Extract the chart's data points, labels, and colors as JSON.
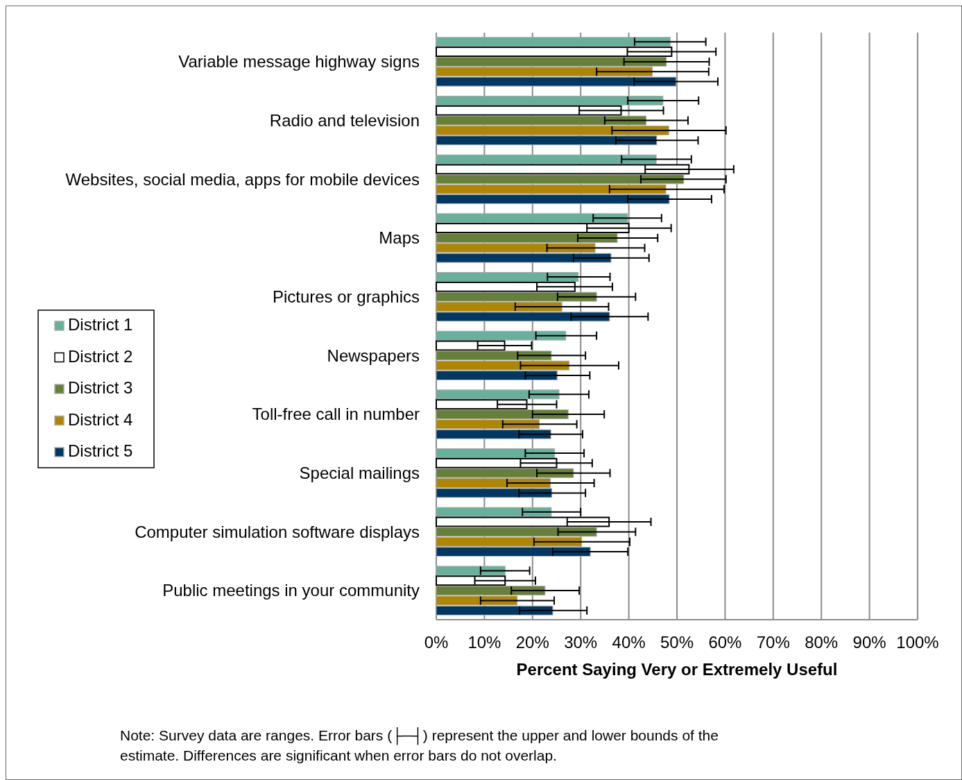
{
  "chart_data": {
    "type": "bar",
    "orientation": "horizontal",
    "categories": [
      "Variable message highway signs",
      "Radio and television",
      "Websites, social media, apps for mobile devices",
      "Maps",
      "Pictures or graphics",
      "Newspapers",
      "Toll-free call in number",
      "Special mailings",
      "Computer simulation software displays",
      "Public meetings in your community"
    ],
    "series": [
      {
        "name": "District 1",
        "color": "#67b09b",
        "values": [
          48.6,
          47.1,
          45.7,
          39.7,
          29.5,
          26.9,
          25.5,
          24.6,
          23.9,
          14.3
        ],
        "errors": [
          [
            41.2,
            56.0
          ],
          [
            39.8,
            54.5
          ],
          [
            38.5,
            53.0
          ],
          [
            32.6,
            46.8
          ],
          [
            23.1,
            36.1
          ],
          [
            20.7,
            33.3
          ],
          [
            19.3,
            31.7
          ],
          [
            18.5,
            30.7
          ],
          [
            17.9,
            30.0
          ],
          [
            9.2,
            19.4
          ]
        ]
      },
      {
        "name": "District 2",
        "color": "#ffffff",
        "values": [
          48.9,
          38.4,
          52.5,
          40.0,
          28.8,
          14.2,
          18.8,
          25.0,
          35.9,
          14.3
        ],
        "errors": [
          [
            39.7,
            58.1
          ],
          [
            29.7,
            47.2
          ],
          [
            43.4,
            61.8
          ],
          [
            31.3,
            48.8
          ],
          [
            20.9,
            36.6
          ],
          [
            8.6,
            19.8
          ],
          [
            12.7,
            25.0
          ],
          [
            17.5,
            32.4
          ],
          [
            27.2,
            44.6
          ],
          [
            8.0,
            20.6
          ]
        ]
      },
      {
        "name": "District 3",
        "color": "#66803a",
        "values": [
          47.8,
          43.6,
          51.4,
          37.6,
          33.3,
          23.9,
          27.4,
          28.5,
          33.3,
          22.6
        ],
        "errors": [
          [
            39.0,
            56.7
          ],
          [
            35.0,
            52.3
          ],
          [
            42.5,
            60.2
          ],
          [
            29.4,
            46.0
          ],
          [
            25.2,
            41.4
          ],
          [
            16.9,
            31.0
          ],
          [
            20.0,
            34.9
          ],
          [
            20.9,
            36.1
          ],
          [
            25.3,
            41.4
          ],
          [
            15.6,
            29.7
          ]
        ]
      },
      {
        "name": "District 4",
        "color": "#b08600",
        "values": [
          44.9,
          48.3,
          47.7,
          33.0,
          26.1,
          27.6,
          21.4,
          23.7,
          30.2,
          16.8
        ],
        "errors": [
          [
            33.3,
            56.6
          ],
          [
            36.5,
            60.2
          ],
          [
            36.0,
            59.8
          ],
          [
            23.0,
            43.3
          ],
          [
            16.4,
            35.8
          ],
          [
            17.5,
            37.9
          ],
          [
            13.8,
            29.2
          ],
          [
            14.7,
            32.8
          ],
          [
            20.3,
            40.2
          ],
          [
            9.2,
            24.5
          ]
        ]
      },
      {
        "name": "District 5",
        "color": "#003865",
        "values": [
          49.8,
          45.8,
          48.4,
          36.3,
          36.0,
          25.1,
          23.8,
          24.0,
          32.0,
          24.2
        ],
        "errors": [
          [
            41.1,
            58.5
          ],
          [
            37.3,
            54.4
          ],
          [
            39.8,
            57.2
          ],
          [
            28.5,
            44.2
          ],
          [
            28.0,
            44.0
          ],
          [
            18.5,
            31.9
          ],
          [
            17.2,
            30.4
          ],
          [
            17.2,
            31.0
          ],
          [
            24.2,
            39.8
          ],
          [
            17.3,
            31.3
          ]
        ]
      }
    ],
    "xlim": [
      0,
      100
    ],
    "xticks": [
      {
        "value": 0,
        "label": "0%"
      },
      {
        "value": 10,
        "label": "10%"
      },
      {
        "value": 20,
        "label": "20%"
      },
      {
        "value": 30,
        "label": "30%"
      },
      {
        "value": 40,
        "label": "40%"
      },
      {
        "value": 50,
        "label": "50%"
      },
      {
        "value": 60,
        "label": "60%"
      },
      {
        "value": 70,
        "label": "70%"
      },
      {
        "value": 80,
        "label": "80%"
      },
      {
        "value": 90,
        "label": "90%"
      },
      {
        "value": 100,
        "label": "100%"
      }
    ],
    "xlabel": "Percent Saying Very or Extremely Useful",
    "grid": "x",
    "legend": "left",
    "annotations": [
      "Note: Survey data are ranges. Error bars (├─┤) represent the upper and lower bounds of the\nestimate. Differences are significant when error bars do not overlap."
    ]
  }
}
